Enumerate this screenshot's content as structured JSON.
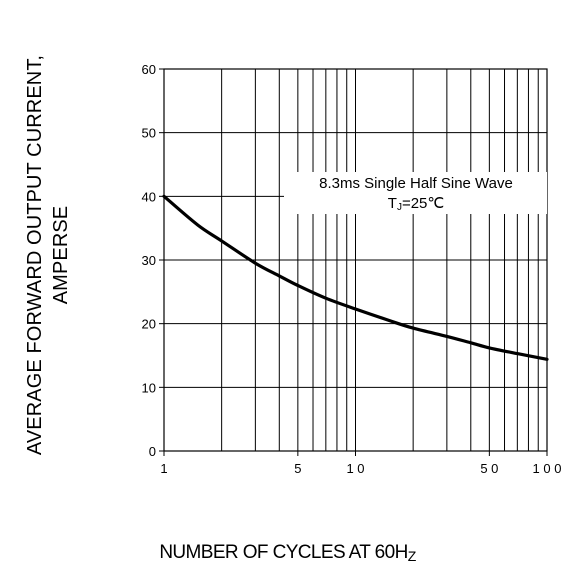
{
  "chart_data": {
    "type": "line",
    "x_scale": "log",
    "xlim": [
      1,
      100
    ],
    "ylim": [
      0,
      60
    ],
    "grid": true,
    "x_ticks": [
      {
        "value": 1,
        "label": "1"
      },
      {
        "value": 5,
        "label": "5"
      },
      {
        "value": 10,
        "label": "1 0"
      },
      {
        "value": 50,
        "label": "5 0"
      },
      {
        "value": 100,
        "label": "1 0 0"
      }
    ],
    "y_ticks": [
      {
        "value": 0,
        "label": "0"
      },
      {
        "value": 10,
        "label": "10"
      },
      {
        "value": 20,
        "label": "20"
      },
      {
        "value": 30,
        "label": "30"
      },
      {
        "value": 40,
        "label": "40"
      },
      {
        "value": 50,
        "label": "50"
      },
      {
        "value": 60,
        "label": "60"
      }
    ],
    "ylabel_line1": "AVERAGE FORWARD OUTPUT CURRENT,",
    "ylabel_line2": "AMPERSE",
    "xlabel_main": "NUMBER  OF  CYCLES AT 60H",
    "xlabel_sub": "Z",
    "annotation_line1": "8.3ms Single Half Sine Wave",
    "annotation_line2_main": "T",
    "annotation_line2_sub": "J",
    "annotation_line2_rest": "=25℃",
    "series": [
      {
        "x": [
          1,
          1.5,
          2,
          3,
          4,
          5,
          7,
          10,
          15,
          20,
          30,
          40,
          50,
          70,
          100
        ],
        "y": [
          40,
          35.5,
          33,
          29.5,
          27.5,
          26,
          24,
          22.3,
          20.5,
          19.3,
          18,
          17,
          16.2,
          15.3,
          14.4
        ],
        "color": "#000000"
      }
    ]
  }
}
